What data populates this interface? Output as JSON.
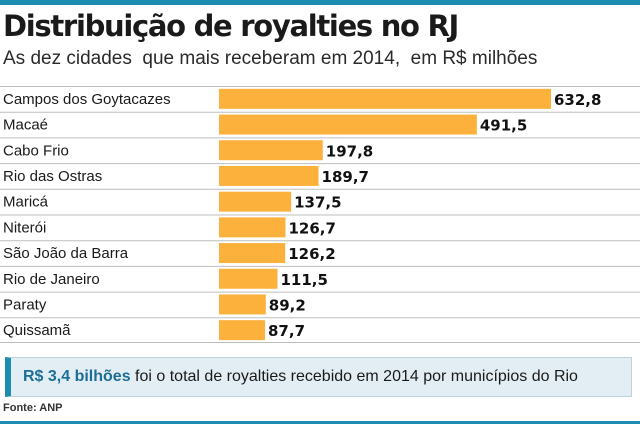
{
  "title": "Distribuição de royalties no RJ",
  "subtitle": "As dez cidades  que mais receberam em 2014,  em R$ milhões",
  "chart_data": {
    "type": "bar",
    "orientation": "horizontal",
    "title": "Distribuição de royalties no RJ",
    "subtitle": "As dez cidades  que mais receberam em 2014,  em R$ milhões",
    "xlabel": "",
    "ylabel": "",
    "xlim": [
      0,
      632.8
    ],
    "grid": false,
    "categories": [
      "Campos dos Goytacazes",
      "Macaé",
      "Cabo Frio",
      "Rio das Ostras",
      "Maricá",
      "Niterói",
      "São João da Barra",
      "Rio de Janeiro",
      "Paraty",
      "Quissamã"
    ],
    "values": [
      632.8,
      491.5,
      197.8,
      189.7,
      137.5,
      126.7,
      126.2,
      111.5,
      89.2,
      87.7
    ],
    "value_labels": [
      "632,8",
      "491,5",
      "197,8",
      "189,7",
      "137,5",
      "126,7",
      "126,2",
      "111,5",
      "89,2",
      "87,7"
    ],
    "bar_color": "#fbb13c",
    "separator_color": "#bdbdbd"
  },
  "callout": {
    "highlight": "R$ 3,4 bilhões",
    "text": " foi o total de royalties recebido em 2014 por municípios do Rio"
  },
  "source": "Fonte: ANP",
  "colors": {
    "accent": "#1d8cb1",
    "bar": "#fbb13c",
    "callout_bg": "#e2eef4"
  }
}
